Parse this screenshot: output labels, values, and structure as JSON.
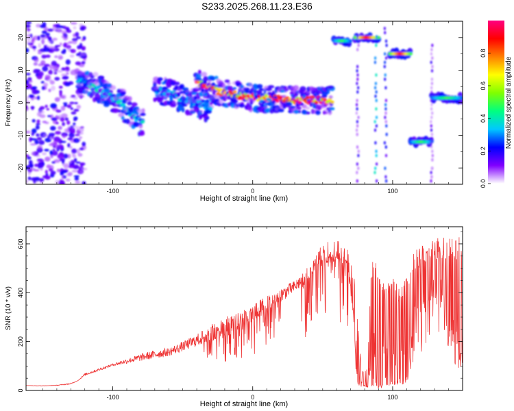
{
  "title": "S233.2025.268.11.23.E36",
  "chart_data": [
    {
      "type": "heatmap",
      "name": "spectrogram",
      "xlabel": "Height of straight line (km)",
      "ylabel": "Frequency (Hz)",
      "xlim": [
        -162,
        150
      ],
      "ylim": [
        -25,
        25
      ],
      "xticks": [
        -100,
        0,
        100
      ],
      "xtick_labels": [
        "-100",
        "0",
        "100"
      ],
      "yticks": [
        -20,
        -10,
        0,
        10,
        20
      ],
      "ytick_labels": [
        "-20",
        "-10",
        "0",
        "10",
        "20"
      ],
      "colorbar": {
        "label": "Normalized spectral amplitude",
        "range": [
          0,
          1
        ],
        "ticks": [
          0.0,
          0.2,
          0.4,
          0.6,
          0.8
        ],
        "tick_labels": [
          "0.0",
          "0.2",
          "0.4",
          "0.6",
          "0.8"
        ],
        "colors": [
          "#ffffff",
          "#8000ff",
          "#0000ff",
          "#00c8ff",
          "#00ff80",
          "#80ff00",
          "#ffff00",
          "#ff8000",
          "#ff0000",
          "#ff0080"
        ]
      },
      "features": [
        {
          "label": "dispersed low-amplitude energy",
          "x_range": [
            -162,
            -120
          ],
          "freq_range": [
            -25,
            25
          ],
          "amplitude": 0.15
        },
        {
          "label": "descending band",
          "x": [
            -125,
            -110,
            -95,
            -85,
            -78
          ],
          "freq": [
            7,
            4,
            0,
            -4,
            -7
          ],
          "amplitude": 0.4
        },
        {
          "label": "band near -50 km",
          "x": [
            -70,
            -60,
            -50,
            -40,
            -30
          ],
          "freq": [
            4,
            3,
            1,
            0,
            -2
          ],
          "amplitude": 0.35
        },
        {
          "label": "main 1 Hz tone",
          "x": [
            -40,
            -20,
            0,
            20,
            40,
            57
          ],
          "freq": [
            6,
            3,
            1.5,
            1,
            0.8,
            0.8
          ],
          "amplitude": 0.95
        },
        {
          "label": "19 Hz tone",
          "x_range": [
            58,
            70
          ],
          "freq": 19,
          "amplitude": 0.5
        },
        {
          "label": "20 Hz tone",
          "x_range": [
            73,
            90
          ],
          "freq": 20,
          "amplitude": 0.9
        },
        {
          "label": "15 Hz tone",
          "x_range": [
            98,
            113
          ],
          "freq": 15,
          "amplitude": 0.9
        },
        {
          "label": "-12 Hz tone",
          "x_range": [
            113,
            128
          ],
          "freq": -12,
          "amplitude": 0.5
        },
        {
          "label": "1.5 Hz tone",
          "x_range": [
            128,
            150
          ],
          "freq": 1.5,
          "amplitude": 0.5
        }
      ]
    },
    {
      "type": "line",
      "name": "snr",
      "xlabel": "Height of straight line (km)",
      "ylabel": "SNR (10 * v/v)",
      "xlim": [
        -162,
        150
      ],
      "ylim": [
        0,
        670
      ],
      "xticks": [
        -100,
        0,
        100
      ],
      "xtick_labels": [
        "-100",
        "0",
        "100"
      ],
      "yticks": [
        0,
        200,
        400,
        600
      ],
      "ytick_labels": [
        "0",
        "200",
        "400",
        "600"
      ],
      "series": [
        {
          "name": "SNR",
          "color": "#ee3333",
          "x": [
            -162,
            -150,
            -140,
            -130,
            -125,
            -120,
            -110,
            -100,
            -90,
            -80,
            -70,
            -60,
            -50,
            -40,
            -30,
            -20,
            -10,
            0,
            10,
            20,
            30,
            35,
            40,
            45,
            50,
            55,
            60,
            65,
            68,
            72,
            75,
            78,
            82,
            85,
            88,
            90,
            95,
            100,
            105,
            110,
            115,
            120,
            125,
            130,
            135,
            140,
            145,
            150
          ],
          "y": [
            20,
            18,
            22,
            30,
            40,
            70,
            90,
            110,
            130,
            150,
            165,
            175,
            200,
            230,
            270,
            300,
            320,
            350,
            390,
            420,
            450,
            480,
            520,
            560,
            600,
            610,
            615,
            600,
            580,
            520,
            300,
            80,
            90,
            540,
            560,
            500,
            420,
            470,
            410,
            470,
            560,
            600,
            620,
            625,
            625,
            630,
            630,
            625
          ],
          "noise": [
            20,
            20,
            20,
            25,
            40,
            60,
            80,
            100,
            110,
            120,
            130,
            140,
            160,
            180,
            200,
            220,
            240,
            280,
            320,
            360,
            400,
            420,
            450,
            480,
            500,
            520,
            540,
            520,
            480,
            300,
            50,
            20,
            20,
            30,
            30,
            20,
            30,
            40,
            40,
            60,
            200,
            300,
            350,
            350,
            350,
            350,
            200,
            150
          ]
        }
      ]
    }
  ]
}
